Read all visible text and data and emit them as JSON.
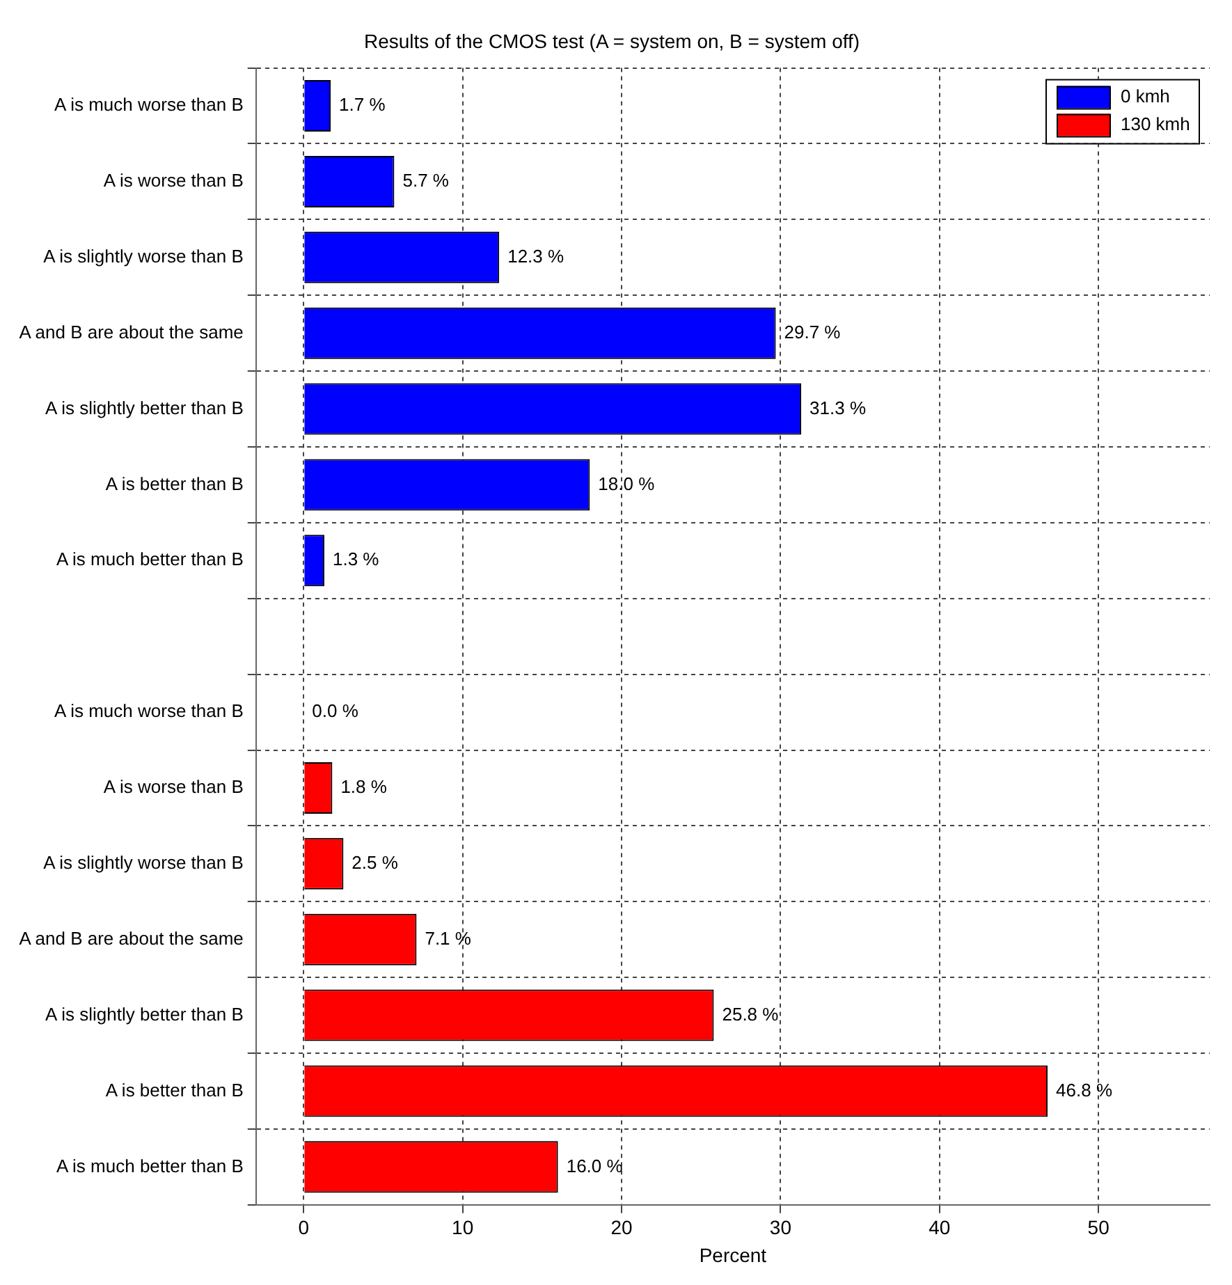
{
  "chart_data": {
    "type": "bar",
    "orientation": "horizontal",
    "title": "Results of the CMOS test (A = system on, B = system off)",
    "xlabel": "Percent",
    "categories": [
      "A is much worse than B",
      "A is worse than B",
      "A is slightly worse than B",
      "A and B are about the same",
      "A is slightly better than B",
      "A is better than B",
      "A is much better than B",
      null,
      "A is much worse than B",
      "A is worse than B",
      "A is slightly worse than B",
      "A and B are about the same",
      "A is slightly better than B",
      "A is better than B",
      "A is much better than B"
    ],
    "series": [
      {
        "name": "0 kmh",
        "color": "#0000ff",
        "values": [
          1.7,
          5.7,
          12.3,
          29.7,
          31.3,
          18.0,
          1.3,
          null,
          null,
          null,
          null,
          null,
          null,
          null,
          null
        ],
        "value_labels": [
          "1.7 %",
          "5.7 %",
          "12.3 %",
          "29.7 %",
          "31.3 %",
          "18.0 %",
          "1.3 %",
          null,
          null,
          null,
          null,
          null,
          null,
          null,
          null
        ]
      },
      {
        "name": "130 kmh",
        "color": "#ff0000",
        "values": [
          null,
          null,
          null,
          null,
          null,
          null,
          null,
          null,
          0.0,
          1.8,
          2.5,
          7.1,
          25.8,
          46.8,
          16.0
        ],
        "value_labels": [
          null,
          null,
          null,
          null,
          null,
          null,
          null,
          null,
          "0.0 %",
          "1.8 %",
          "2.5 %",
          "7.1 %",
          "25.8 %",
          "46.8 %",
          "16.0 %"
        ]
      }
    ],
    "xlim": [
      -3,
      57
    ],
    "xticks": [
      0,
      10,
      20,
      30,
      40,
      50
    ],
    "grid": true,
    "legend": "top right"
  }
}
